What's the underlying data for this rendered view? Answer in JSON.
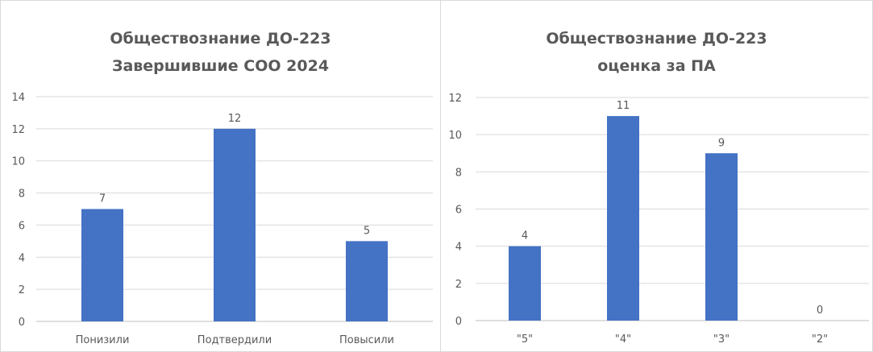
{
  "chart_data": [
    {
      "type": "bar",
      "title": "Обществознание ДО-223",
      "subtitle": "Завершившие СОО 2024",
      "categories": [
        "Понизили",
        "Подтвердили",
        "Повысили"
      ],
      "values": [
        7,
        12,
        5
      ],
      "data_labels": [
        "7",
        "12",
        "5"
      ],
      "yticks": [
        "0",
        "2",
        "4",
        "6",
        "8",
        "10",
        "12",
        "14"
      ],
      "ylim": [
        0,
        14
      ],
      "xlabel": "",
      "ylabel": "",
      "grid": true,
      "bar_color": "#4472C4",
      "legend": "none"
    },
    {
      "type": "bar",
      "title": "Обществознание ДО-223",
      "subtitle": "оценка за ПА",
      "categories": [
        "\"5\"",
        "\"4\"",
        "\"3\"",
        "\"2\""
      ],
      "values": [
        4,
        11,
        9,
        0
      ],
      "data_labels": [
        "4",
        "11",
        "9",
        "0"
      ],
      "yticks": [
        "0",
        "2",
        "4",
        "6",
        "8",
        "10",
        "12"
      ],
      "ylim": [
        0,
        12
      ],
      "xlabel": "",
      "ylabel": "",
      "grid": true,
      "bar_color": "#4472C4",
      "legend": "none"
    }
  ]
}
